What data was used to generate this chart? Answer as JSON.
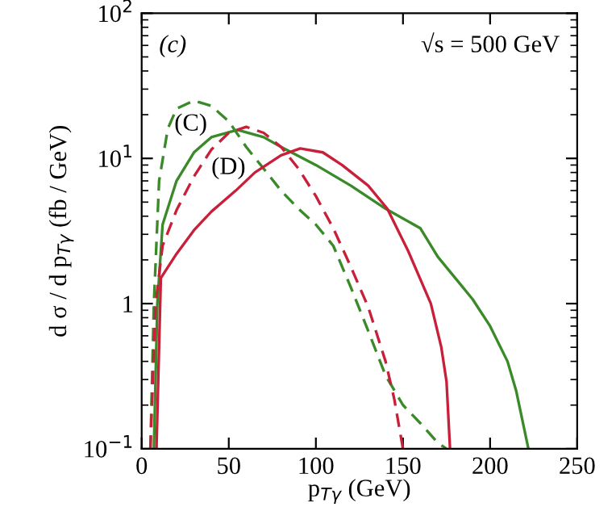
{
  "chart_data": {
    "type": "line",
    "xlabel": "p$_{Tγ}$ (GeV)",
    "ylabel": "d σ / d p$_{Tγ}$ (fb / GeV)",
    "log": "y",
    "xlim": [
      0,
      250
    ],
    "ylim": [
      0.1,
      100
    ],
    "xticks": [
      0,
      50,
      100,
      150,
      200,
      250
    ],
    "yticks": [
      {
        "value": 0.1,
        "label": "10$^{−1}$"
      },
      1,
      {
        "value": 10,
        "label": "10$^{1}$"
      },
      {
        "value": 100,
        "label": "10$^{2}$"
      }
    ],
    "grid": false,
    "legend": false,
    "marker": "none",
    "annotations": [
      "(c)",
      "√s = 500 GeV",
      "(C)",
      "(D)"
    ],
    "series": [
      {
        "color": "#3a8a2a",
        "line_style": "dashed",
        "x": [
          5,
          7,
          10,
          15,
          20,
          30,
          40,
          50,
          60,
          70,
          80,
          90,
          100,
          110,
          120,
          130,
          140,
          150,
          160,
          170,
          175
        ],
        "values": [
          0.1,
          1,
          7,
          16,
          22,
          25,
          23,
          18,
          12,
          8.5,
          6,
          4.5,
          3.5,
          2.5,
          1.3,
          0.65,
          0.32,
          0.2,
          0.15,
          0.11,
          0.1
        ]
      },
      {
        "color": "#3a8a2a",
        "line_style": "solid",
        "x": [
          7,
          9,
          12,
          20,
          30,
          40,
          55,
          70,
          80,
          100,
          120,
          140,
          160,
          170,
          180,
          190,
          200,
          210,
          215,
          222
        ],
        "values": [
          0.1,
          1,
          3.5,
          7,
          11,
          14,
          15.7,
          14,
          12,
          9,
          6.5,
          4.5,
          3.3,
          2.1,
          1.5,
          1.07,
          0.7,
          0.4,
          0.25,
          0.1
        ]
      },
      {
        "color": "#c8203a",
        "line_style": "dashed",
        "x": [
          5,
          8,
          12,
          20,
          30,
          40,
          50,
          60,
          70,
          80,
          90,
          100,
          110,
          120,
          130,
          140,
          145,
          150
        ],
        "values": [
          0.1,
          1,
          2.5,
          4.4,
          7.5,
          11.5,
          15,
          16.5,
          15,
          12,
          8.5,
          5.5,
          3.3,
          1.8,
          0.95,
          0.4,
          0.22,
          0.1
        ]
      },
      {
        "color": "#c8203a",
        "line_style": "solid",
        "x": [
          8.5,
          11,
          20,
          30,
          40,
          54,
          65,
          80,
          91,
          104,
          115,
          130,
          141,
          153,
          166,
          172,
          175,
          177
        ],
        "values": [
          0.1,
          1.5,
          2.2,
          3.2,
          4.3,
          6,
          8,
          10.5,
          11.7,
          11,
          9,
          6.5,
          4.5,
          2.3,
          1,
          0.5,
          0.29,
          0.1
        ]
      }
    ]
  }
}
